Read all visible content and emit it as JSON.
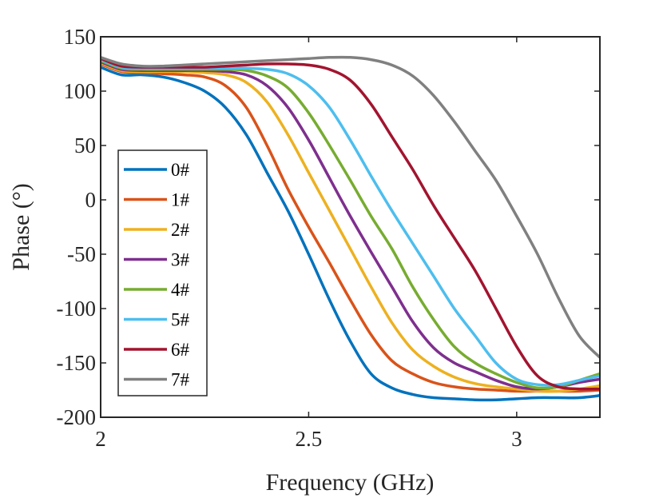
{
  "chart_data": {
    "type": "line",
    "title": "",
    "xlabel": "Frequency (GHz)",
    "ylabel": "Phase (°)",
    "xlim": [
      2.0,
      3.2
    ],
    "ylim": [
      -200,
      150
    ],
    "grid": false,
    "legend_position": "left",
    "x_ticks": [
      2.0,
      2.5,
      3.0
    ],
    "x_tick_labels": [
      "2",
      "2.5",
      "3"
    ],
    "y_ticks": [
      150,
      100,
      50,
      0,
      -50,
      -100,
      -150,
      -200
    ],
    "y_tick_labels": [
      "150",
      "100",
      "50",
      "0",
      "-50",
      "-100",
      "-150",
      "-200"
    ],
    "series": [
      {
        "name": "0#",
        "color": "#0072BD",
        "x": [
          2.0,
          2.05,
          2.1,
          2.15,
          2.2,
          2.25,
          2.3,
          2.35,
          2.4,
          2.45,
          2.5,
          2.55,
          2.6,
          2.65,
          2.7,
          2.75,
          2.8,
          2.85,
          2.9,
          2.95,
          3.0,
          3.05,
          3.1,
          3.15,
          3.2
        ],
        "values": [
          122,
          115,
          115,
          113,
          108,
          100,
          85,
          60,
          25,
          -10,
          -50,
          -92,
          -130,
          -160,
          -173,
          -179,
          -182,
          -183,
          -184,
          -184,
          -183,
          -182,
          -182,
          -182,
          -180
        ]
      },
      {
        "name": "1#",
        "color": "#D95319",
        "x": [
          2.0,
          2.05,
          2.1,
          2.15,
          2.2,
          2.25,
          2.3,
          2.35,
          2.4,
          2.45,
          2.5,
          2.55,
          2.6,
          2.65,
          2.7,
          2.75,
          2.8,
          2.85,
          2.9,
          2.95,
          3.0,
          3.05,
          3.1,
          3.15,
          3.2
        ],
        "values": [
          125,
          118,
          117,
          116,
          115,
          113,
          105,
          85,
          50,
          10,
          -25,
          -58,
          -92,
          -124,
          -148,
          -160,
          -168,
          -172,
          -174,
          -175,
          -176,
          -176,
          -176,
          -176,
          -175
        ]
      },
      {
        "name": "2#",
        "color": "#EDB120",
        "x": [
          2.0,
          2.05,
          2.1,
          2.15,
          2.2,
          2.25,
          2.3,
          2.35,
          2.4,
          2.45,
          2.5,
          2.55,
          2.6,
          2.65,
          2.7,
          2.75,
          2.8,
          2.85,
          2.9,
          2.95,
          3.0,
          3.05,
          3.1,
          3.15,
          3.2
        ],
        "values": [
          126,
          119,
          118,
          118,
          118,
          117,
          115,
          108,
          90,
          60,
          25,
          -10,
          -45,
          -80,
          -113,
          -138,
          -153,
          -163,
          -169,
          -172,
          -174,
          -176,
          -176,
          -174,
          -171
        ]
      },
      {
        "name": "3#",
        "color": "#7E2F8E",
        "x": [
          2.0,
          2.05,
          2.1,
          2.15,
          2.2,
          2.25,
          2.3,
          2.35,
          2.4,
          2.45,
          2.5,
          2.55,
          2.6,
          2.65,
          2.7,
          2.75,
          2.8,
          2.85,
          2.9,
          2.95,
          3.0,
          3.05,
          3.1,
          3.15,
          3.2
        ],
        "values": [
          127,
          120,
          119,
          119,
          119,
          119,
          118,
          115,
          105,
          85,
          55,
          20,
          -15,
          -48,
          -80,
          -112,
          -136,
          -150,
          -158,
          -166,
          -172,
          -174,
          -172,
          -168,
          -165
        ]
      },
      {
        "name": "4#",
        "color": "#77AC30",
        "x": [
          2.0,
          2.05,
          2.1,
          2.15,
          2.2,
          2.25,
          2.3,
          2.35,
          2.4,
          2.45,
          2.5,
          2.55,
          2.6,
          2.65,
          2.7,
          2.75,
          2.8,
          2.85,
          2.9,
          2.95,
          3.0,
          3.05,
          3.1,
          3.15,
          3.2
        ],
        "values": [
          128,
          121,
          120,
          120,
          120,
          120,
          120,
          119,
          114,
          103,
          80,
          50,
          18,
          -15,
          -45,
          -80,
          -110,
          -135,
          -150,
          -160,
          -168,
          -173,
          -172,
          -166,
          -160
        ]
      },
      {
        "name": "5#",
        "color": "#4DBEEE",
        "x": [
          2.0,
          2.05,
          2.1,
          2.15,
          2.2,
          2.25,
          2.3,
          2.35,
          2.4,
          2.45,
          2.5,
          2.55,
          2.6,
          2.65,
          2.7,
          2.75,
          2.8,
          2.85,
          2.9,
          2.95,
          3.0,
          3.05,
          3.1,
          3.15,
          3.2
        ],
        "values": [
          129,
          122,
          121,
          121,
          121,
          121,
          121,
          121,
          120,
          116,
          105,
          85,
          55,
          22,
          -10,
          -40,
          -70,
          -100,
          -125,
          -150,
          -165,
          -170,
          -170,
          -166,
          -162
        ]
      },
      {
        "name": "6#",
        "color": "#A2142F",
        "x": [
          2.0,
          2.05,
          2.1,
          2.15,
          2.2,
          2.25,
          2.3,
          2.35,
          2.4,
          2.45,
          2.5,
          2.55,
          2.6,
          2.65,
          2.7,
          2.75,
          2.8,
          2.85,
          2.9,
          2.95,
          3.0,
          3.05,
          3.1,
          3.15,
          3.2
        ],
        "values": [
          130,
          123,
          122,
          122,
          122,
          122,
          123,
          124,
          125,
          125,
          124,
          120,
          110,
          88,
          58,
          28,
          -5,
          -35,
          -65,
          -100,
          -135,
          -162,
          -172,
          -174,
          -174
        ]
      },
      {
        "name": "7#",
        "color": "#808080",
        "x": [
          2.0,
          2.05,
          2.1,
          2.15,
          2.2,
          2.25,
          2.3,
          2.35,
          2.4,
          2.45,
          2.5,
          2.55,
          2.6,
          2.65,
          2.7,
          2.75,
          2.8,
          2.85,
          2.9,
          2.95,
          3.0,
          3.05,
          3.1,
          3.15,
          3.2
        ],
        "values": [
          131,
          125,
          123,
          123,
          124,
          125,
          126,
          127,
          128,
          129,
          130,
          131,
          131,
          129,
          124,
          114,
          96,
          72,
          45,
          18,
          -15,
          -50,
          -90,
          -125,
          -145
        ]
      }
    ]
  }
}
